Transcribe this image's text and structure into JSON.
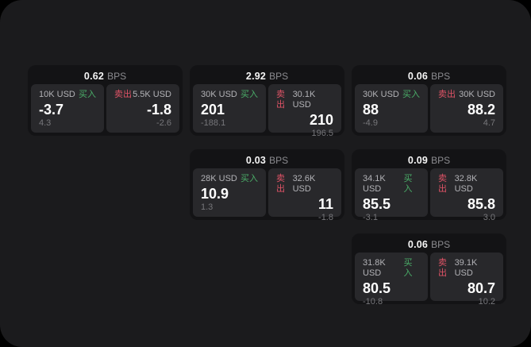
{
  "page": {
    "background": "#000000",
    "surface_color": "#1b1b1d"
  },
  "colors": {
    "buy_green": "#4aad68",
    "sell_red": "#df5366",
    "card_bg": "#131315",
    "panel_bg": "#28282b"
  },
  "labels": {
    "buy": "买入",
    "sell": "卖出",
    "bps_unit": "BPS"
  },
  "cards": [
    {
      "bps": "0.62",
      "buy": {
        "size": "10K USD",
        "price": "-3.7",
        "delta": "4.3"
      },
      "sell": {
        "size": "5.5K USD",
        "price": "-1.8",
        "delta": "-2.6"
      }
    },
    {
      "bps": "2.92",
      "buy": {
        "size": "30K USD",
        "price": "201",
        "delta": "-188.1"
      },
      "sell": {
        "size": "30.1K USD",
        "price": "210",
        "delta": "196.5"
      }
    },
    {
      "bps": "0.06",
      "buy": {
        "size": "30K USD",
        "price": "88",
        "delta": "-4.9"
      },
      "sell": {
        "size": "30K USD",
        "price": "88.2",
        "delta": "4.7"
      }
    },
    {
      "bps": "0.03",
      "buy": {
        "size": "28K USD",
        "price": "10.9",
        "delta": "1.3"
      },
      "sell": {
        "size": "32.6K USD",
        "price": "11",
        "delta": "-1.8"
      }
    },
    {
      "bps": "0.09",
      "buy": {
        "size": "34.1K USD",
        "price": "85.5",
        "delta": "-3.1"
      },
      "sell": {
        "size": "32.8K USD",
        "price": "85.8",
        "delta": "3.0"
      }
    },
    {
      "bps": "0.06",
      "buy": {
        "size": "31.8K USD",
        "price": "80.5",
        "delta": "-10.8"
      },
      "sell": {
        "size": "39.1K USD",
        "price": "80.7",
        "delta": "10.2"
      }
    }
  ]
}
